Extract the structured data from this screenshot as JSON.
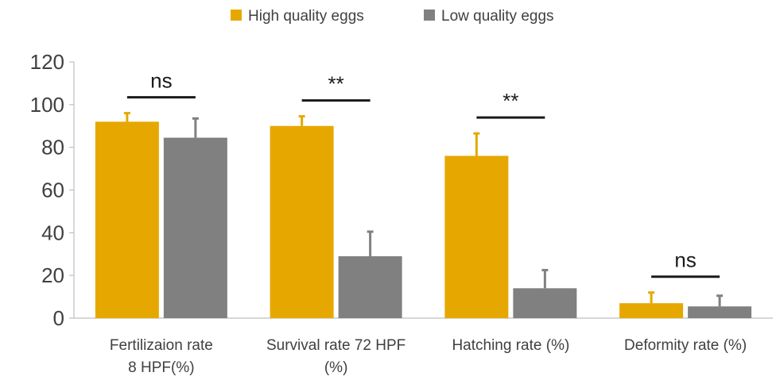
{
  "chart_data": {
    "type": "bar",
    "title": "",
    "xlabel": "",
    "ylabel": "",
    "ylim": [
      0,
      120
    ],
    "yticks": [
      0,
      20,
      40,
      60,
      80,
      100,
      120
    ],
    "grid": false,
    "legend_position": "top-center",
    "categories": [
      [
        "Fertilizaion rate",
        "8 HPF(%)"
      ],
      [
        "Survival rate 72 HPF",
        "(%)"
      ],
      [
        "Hatching rate (%)"
      ],
      [
        "Deformity rate (%)"
      ]
    ],
    "series": [
      {
        "name": "High quality eggs",
        "color": "#E6A800",
        "values": [
          92,
          90,
          76,
          7
        ],
        "errors": [
          4,
          4.5,
          10.5,
          5
        ]
      },
      {
        "name": "Low quality eggs",
        "color": "#808080",
        "values": [
          84.5,
          29,
          14,
          5.5
        ],
        "errors": [
          9,
          11.5,
          8.5,
          5
        ]
      }
    ],
    "significance": [
      "ns",
      "**",
      "**",
      "ns"
    ]
  }
}
